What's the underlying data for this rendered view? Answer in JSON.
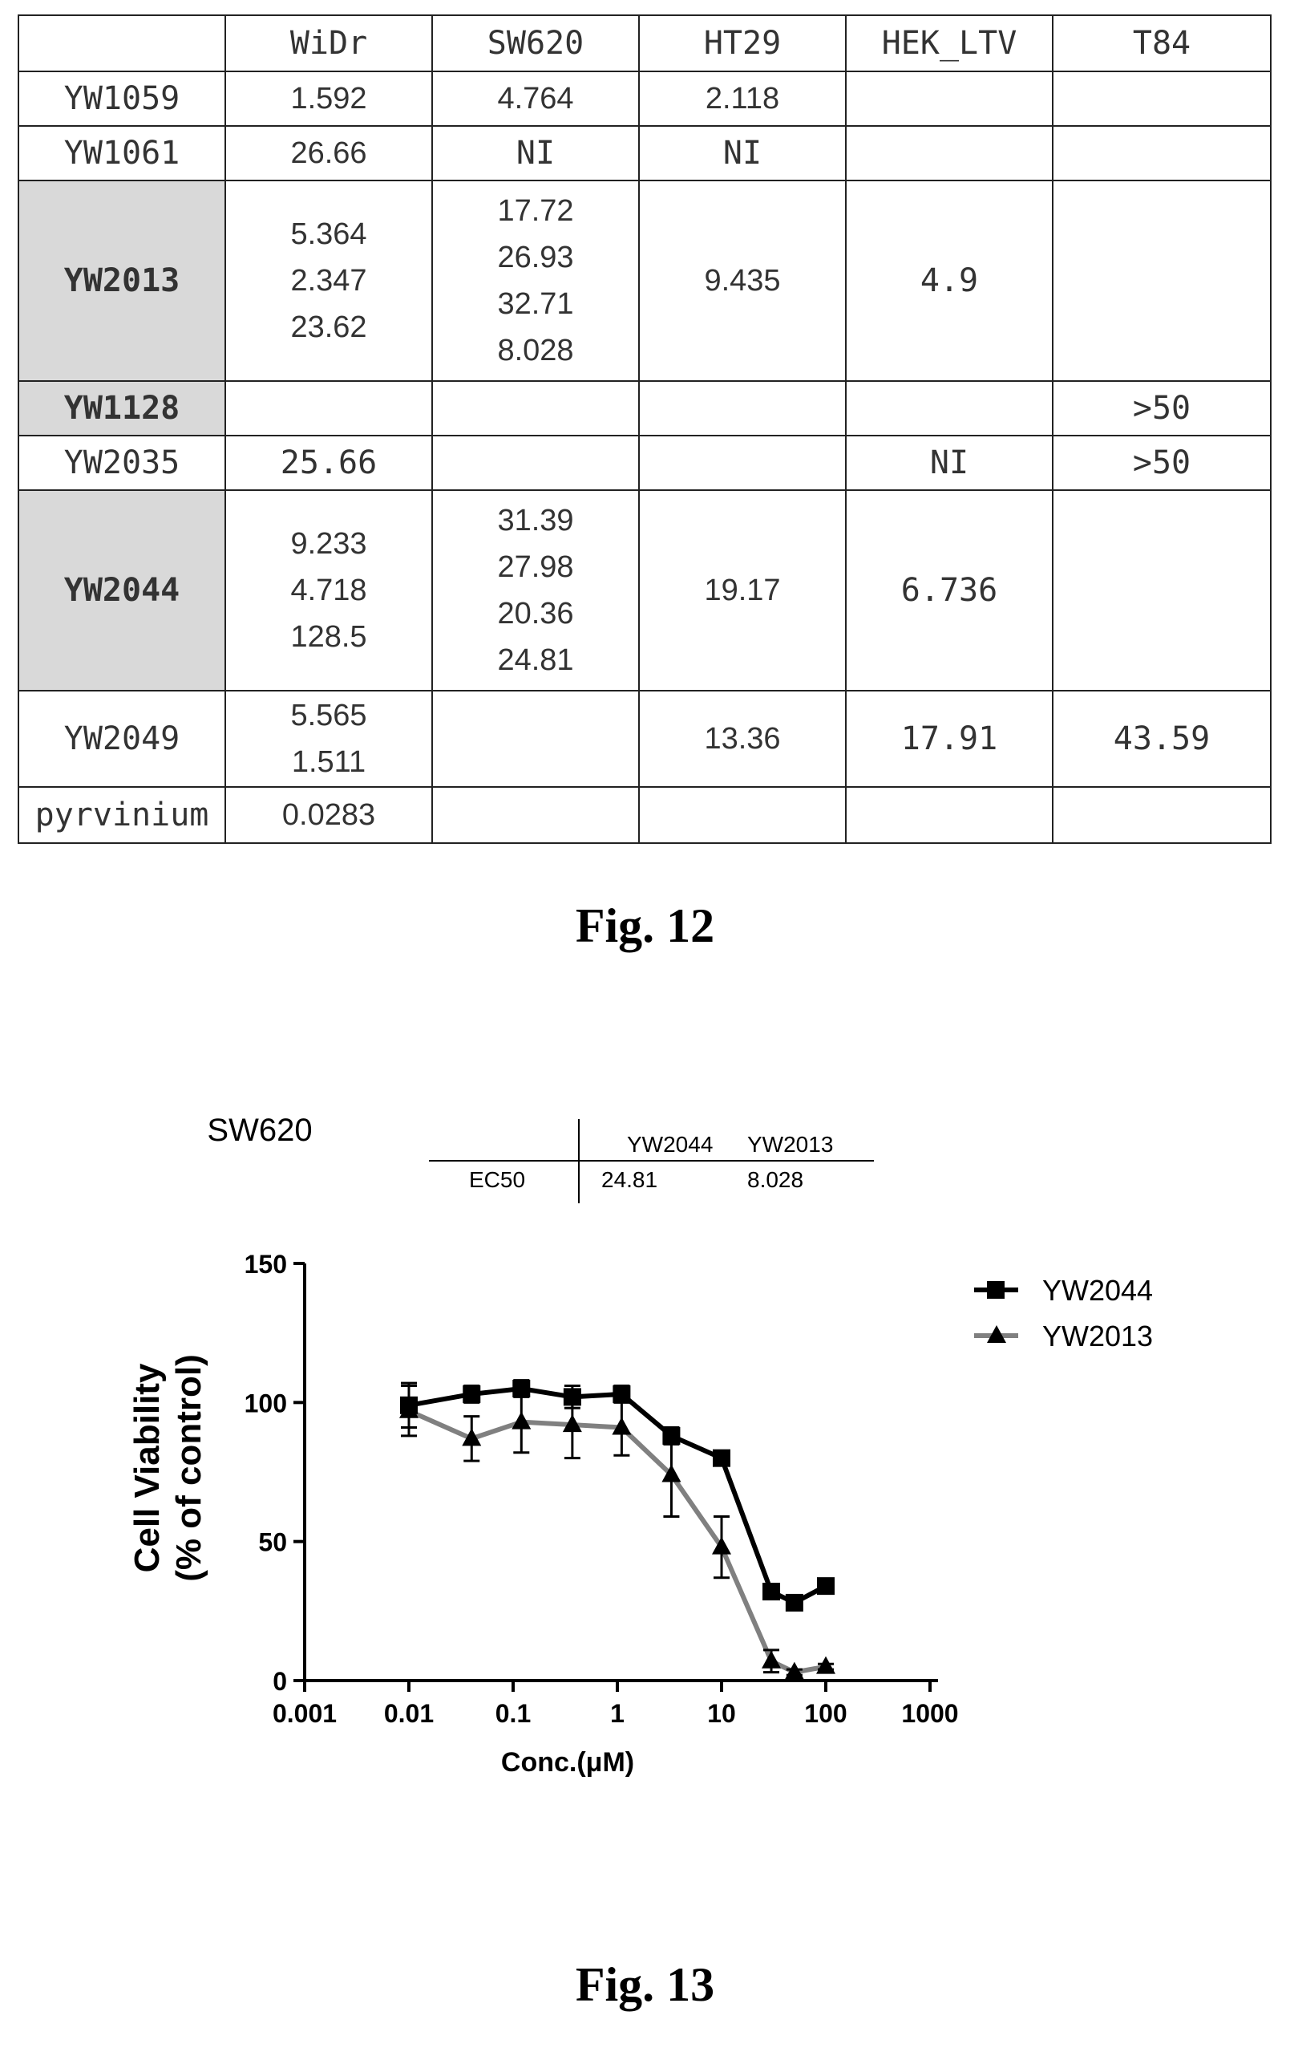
{
  "fig12": {
    "caption": "Fig. 12",
    "columns": [
      "",
      "WiDr",
      "SW620",
      "HT29",
      "HEK_LTV",
      "T84"
    ],
    "rows": [
      {
        "name": "YW1059",
        "shaded": false,
        "cells": [
          [
            "1.592"
          ],
          [
            "4.764"
          ],
          [
            "2.118"
          ],
          [],
          []
        ]
      },
      {
        "name": "YW1061",
        "shaded": false,
        "cells": [
          [
            "26.66"
          ],
          [
            "NI"
          ],
          [
            "NI"
          ],
          [],
          []
        ]
      },
      {
        "name": "YW2013",
        "shaded": true,
        "cells": [
          [
            "5.364",
            "2.347",
            "23.62"
          ],
          [
            "17.72",
            "26.93",
            "32.71",
            "8.028"
          ],
          [
            "9.435"
          ],
          [
            "4.9"
          ],
          []
        ]
      },
      {
        "name": "YW1128",
        "shaded": true,
        "cells": [
          [],
          [],
          [],
          [],
          [
            ">50"
          ]
        ]
      },
      {
        "name": "YW2035",
        "shaded": false,
        "cells": [
          [
            "25.66"
          ],
          [],
          [],
          [
            "NI"
          ],
          [
            ">50"
          ]
        ]
      },
      {
        "name": "YW2044",
        "shaded": true,
        "cells": [
          [
            "9.233",
            "4.718",
            "128.5"
          ],
          [
            "31.39",
            "27.98",
            "20.36",
            "24.81"
          ],
          [
            "19.17"
          ],
          [
            "6.736"
          ],
          []
        ]
      },
      {
        "name": "YW2049",
        "shaded": false,
        "cells": [
          [
            "5.565",
            "1.511"
          ],
          [],
          [
            "13.36"
          ],
          [
            "17.91"
          ],
          [
            "43.59"
          ]
        ]
      },
      {
        "name": "pyrvinium",
        "shaded": false,
        "cells": [
          [
            "0.0283"
          ],
          [],
          [],
          [],
          []
        ]
      }
    ]
  },
  "fig13": {
    "caption": "Fig. 13",
    "cell_line": "SW620",
    "ec50_table": {
      "row_label": "EC50",
      "headers": [
        "YW2044",
        "YW2013"
      ],
      "values": [
        "24.81",
        "8.028"
      ]
    },
    "legend": [
      {
        "name": "YW2044",
        "marker": "square",
        "color": "#000000"
      },
      {
        "name": "YW2013",
        "marker": "triangle",
        "color": "#808080"
      }
    ]
  },
  "chart_data": {
    "type": "line",
    "xlabel": "Conc.(μM)",
    "ylabel": "Cell Viability (% of control)",
    "ylabel_lines": [
      "Cell Viability",
      "(% of control)"
    ],
    "x_scale": "log",
    "xlim": [
      0.001,
      1000
    ],
    "ylim": [
      0,
      150
    ],
    "x_ticks": [
      "0.001",
      "0.01",
      "0.1",
      "1",
      "10",
      "100",
      "1000"
    ],
    "y_ticks": [
      "0",
      "50",
      "100",
      "150"
    ],
    "legend_position": "top-right",
    "series": [
      {
        "name": "YW2044",
        "color": "#000000",
        "marker": "square",
        "x": [
          0.01,
          0.04,
          0.12,
          0.37,
          1.1,
          3.3,
          10,
          30,
          50,
          100
        ],
        "y": [
          99,
          103,
          105,
          102,
          103,
          88,
          80,
          32,
          28,
          34
        ],
        "err": [
          8,
          3,
          3,
          4,
          3,
          3,
          1,
          2,
          2,
          1
        ]
      },
      {
        "name": "YW2013",
        "color": "#808080",
        "marker": "triangle",
        "x": [
          0.01,
          0.04,
          0.12,
          0.37,
          1.1,
          3.3,
          10,
          30,
          50,
          100
        ],
        "y": [
          97,
          87,
          93,
          92,
          91,
          74,
          48,
          7,
          3,
          5
        ],
        "err": [
          9,
          8,
          11,
          12,
          10,
          15,
          11,
          4,
          1,
          1
        ]
      }
    ]
  }
}
